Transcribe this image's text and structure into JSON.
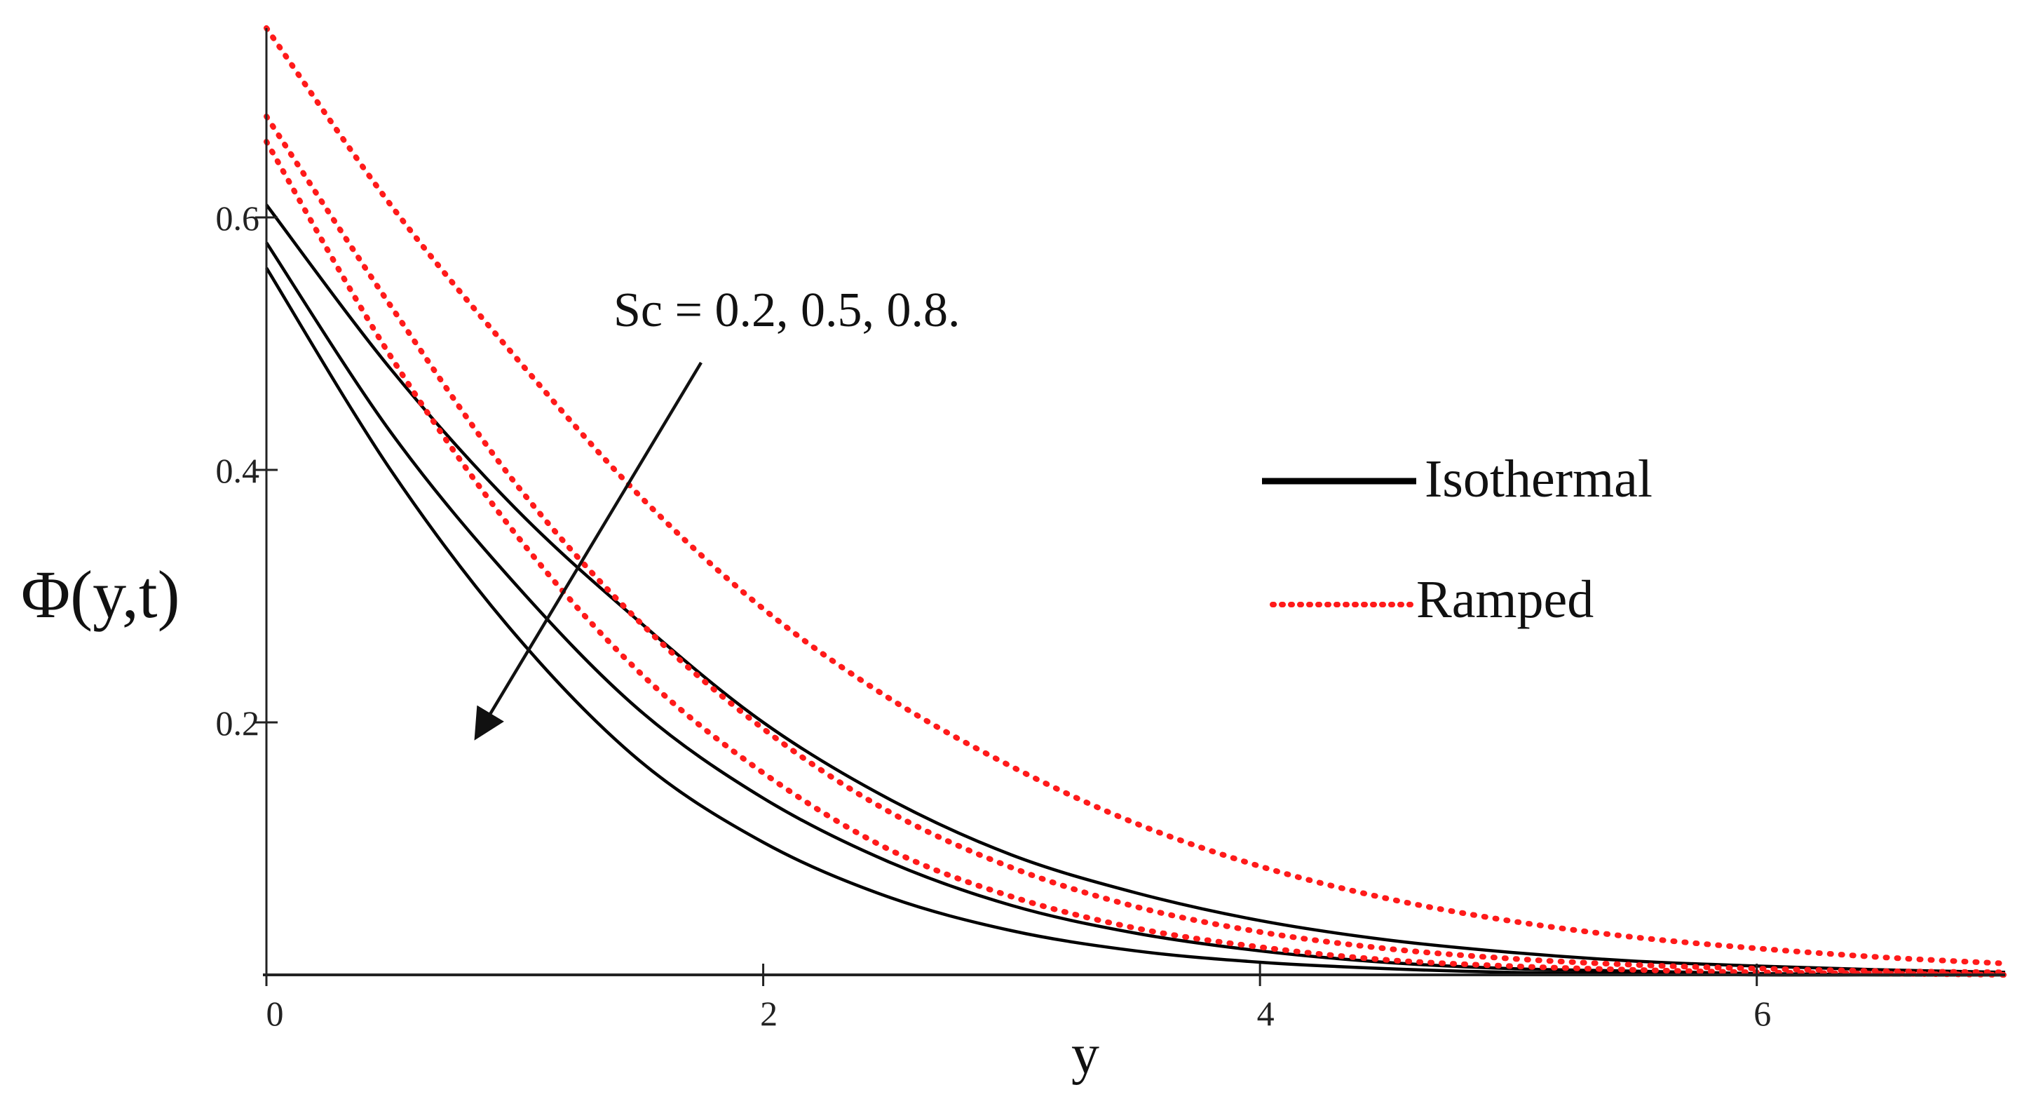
{
  "chart_data": {
    "type": "line",
    "title": "",
    "xlabel": "y",
    "ylabel": "Φ(y,t)",
    "xlim": [
      0,
      7
    ],
    "ylim": [
      0,
      0.75
    ],
    "xticks": [
      0,
      2,
      4,
      6
    ],
    "xtick_labels": [
      "0",
      "2",
      "4",
      "6"
    ],
    "yticks": [
      0.2,
      0.4,
      0.6
    ],
    "ytick_labels": [
      "0.2",
      "0.4",
      "0.6"
    ],
    "legend_position": "right",
    "legend": [
      {
        "label": "Isothermal",
        "style": "solid",
        "color": "#000000"
      },
      {
        "label": "Ramped",
        "style": "dotted",
        "color": "#ff1a1a"
      }
    ],
    "annotation": {
      "text": "Sc = 0.2, 0.5, 0.8.",
      "arrow_from": [
        1.75,
        0.485
      ],
      "arrow_to": [
        0.85,
        0.19
      ]
    },
    "x": [
      0,
      0.5,
      1,
      1.5,
      2,
      2.5,
      3,
      3.5,
      4,
      4.5,
      5,
      5.5,
      6,
      6.5,
      7
    ],
    "series": [
      {
        "name": "Isothermal Sc=0.2",
        "group": "Isothermal",
        "values": [
          0.61,
          0.48,
          0.37,
          0.28,
          0.2,
          0.14,
          0.095,
          0.065,
          0.043,
          0.028,
          0.018,
          0.011,
          0.007,
          0.004,
          0.002
        ]
      },
      {
        "name": "Isothermal Sc=0.5",
        "group": "Isothermal",
        "values": [
          0.58,
          0.43,
          0.31,
          0.21,
          0.14,
          0.09,
          0.055,
          0.033,
          0.019,
          0.01,
          0.005,
          0.003,
          0.001,
          0.0,
          0.0
        ]
      },
      {
        "name": "Isothermal Sc=0.8",
        "group": "Isothermal",
        "values": [
          0.56,
          0.4,
          0.27,
          0.17,
          0.105,
          0.062,
          0.035,
          0.019,
          0.01,
          0.005,
          0.002,
          0.001,
          0.0,
          0.0,
          0.0
        ]
      },
      {
        "name": "Ramped Sc=0.2",
        "group": "Ramped",
        "values": [
          0.75,
          0.61,
          0.49,
          0.38,
          0.29,
          0.22,
          0.165,
          0.12,
          0.086,
          0.061,
          0.043,
          0.03,
          0.021,
          0.014,
          0.009
        ]
      },
      {
        "name": "Ramped Sc=0.5",
        "group": "Ramped",
        "values": [
          0.68,
          0.53,
          0.39,
          0.28,
          0.195,
          0.13,
          0.085,
          0.054,
          0.034,
          0.021,
          0.013,
          0.008,
          0.005,
          0.003,
          0.002
        ]
      },
      {
        "name": "Ramped Sc=0.8",
        "group": "Ramped",
        "values": [
          0.66,
          0.49,
          0.35,
          0.24,
          0.16,
          0.1,
          0.062,
          0.037,
          0.022,
          0.012,
          0.007,
          0.004,
          0.002,
          0.001,
          0.0
        ]
      }
    ]
  }
}
